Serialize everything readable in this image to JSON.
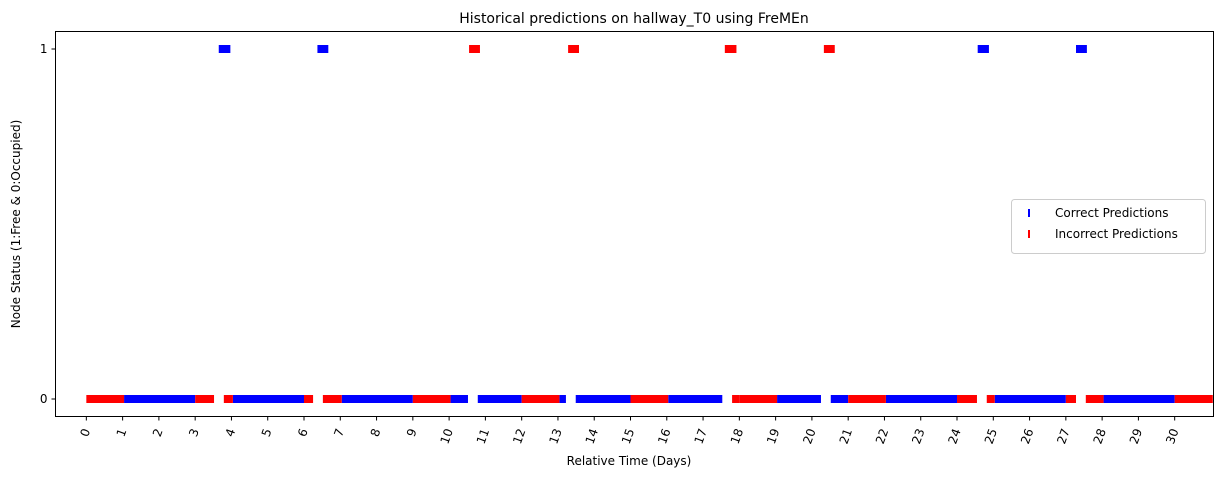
{
  "chart_data": {
    "type": "scatter",
    "title": "Historical predictions on hallway_T0 using FreMEn",
    "xlabel": "Relative Time (Days)",
    "ylabel": "Node Status (1:Free & 0:Occupied)",
    "xlim": [
      -0.85,
      31.07
    ],
    "ylim": [
      -0.05,
      1.05
    ],
    "xticks": [
      0,
      1,
      2,
      3,
      4,
      5,
      6,
      7,
      8,
      9,
      10,
      11,
      12,
      13,
      14,
      15,
      16,
      17,
      18,
      19,
      20,
      21,
      22,
      23,
      24,
      25,
      26,
      27,
      28,
      29,
      30
    ],
    "xtick_labels": [
      "0",
      "1",
      "2",
      "3",
      "4",
      "5",
      "6",
      "7",
      "8",
      "9",
      "10",
      "11",
      "12",
      "13",
      "14",
      "15",
      "16",
      "17",
      "18",
      "19",
      "20",
      "21",
      "22",
      "23",
      "24",
      "25",
      "26",
      "27",
      "28",
      "29",
      "30"
    ],
    "xtick_rotation": 70,
    "yticks": [
      0,
      1
    ],
    "ytick_labels": [
      "0",
      "1"
    ],
    "grid": false,
    "legend_position": "center-right",
    "series": [
      {
        "name": "Correct Predictions",
        "color": "#0000ff",
        "marker": "vertical-line",
        "segments": [
          {
            "y": 0,
            "x": [
              1.04,
              3.0
            ]
          },
          {
            "y": 0,
            "x": [
              4.04,
              6.0
            ]
          },
          {
            "y": 0,
            "x": [
              7.04,
              9.0
            ]
          },
          {
            "y": 0,
            "x": [
              10.04,
              10.52
            ]
          },
          {
            "y": 0,
            "x": [
              10.79,
              12.0
            ]
          },
          {
            "y": 0,
            "x": [
              13.04,
              13.22
            ]
          },
          {
            "y": 0,
            "x": [
              13.49,
              15.0
            ]
          },
          {
            "y": 0,
            "x": [
              16.04,
              17.53
            ]
          },
          {
            "y": 0,
            "x": [
              19.04,
              20.25
            ]
          },
          {
            "y": 0,
            "x": [
              20.52,
              21.0
            ]
          },
          {
            "y": 0,
            "x": [
              22.04,
              24.0
            ]
          },
          {
            "y": 0,
            "x": [
              25.04,
              27.0
            ]
          },
          {
            "y": 0,
            "x": [
              28.04,
              30.0
            ]
          },
          {
            "y": 1,
            "x": [
              3.65,
              3.97
            ]
          },
          {
            "y": 1,
            "x": [
              6.37,
              6.67
            ]
          },
          {
            "y": 1,
            "x": [
              24.57,
              24.88
            ]
          },
          {
            "y": 1,
            "x": [
              27.28,
              27.58
            ]
          }
        ]
      },
      {
        "name": "Incorrect Predictions",
        "color": "#ff0000",
        "marker": "vertical-line",
        "segments": [
          {
            "y": 0,
            "x": [
              0.0,
              1.04
            ]
          },
          {
            "y": 0,
            "x": [
              3.0,
              3.52
            ]
          },
          {
            "y": 0,
            "x": [
              3.79,
              4.04
            ]
          },
          {
            "y": 0,
            "x": [
              6.0,
              6.25
            ]
          },
          {
            "y": 0,
            "x": [
              6.52,
              7.04
            ]
          },
          {
            "y": 0,
            "x": [
              9.0,
              10.04
            ]
          },
          {
            "y": 0,
            "x": [
              12.0,
              13.04
            ]
          },
          {
            "y": 0,
            "x": [
              15.0,
              16.04
            ]
          },
          {
            "y": 0,
            "x": [
              17.8,
              18.0
            ]
          },
          {
            "y": 0,
            "x": [
              18.0,
              19.04
            ]
          },
          {
            "y": 0,
            "x": [
              21.0,
              22.04
            ]
          },
          {
            "y": 0,
            "x": [
              24.0,
              24.55
            ]
          },
          {
            "y": 0,
            "x": [
              24.82,
              25.04
            ]
          },
          {
            "y": 0,
            "x": [
              27.0,
              27.28
            ]
          },
          {
            "y": 0,
            "x": [
              27.55,
              28.04
            ]
          },
          {
            "y": 0,
            "x": [
              30.0,
              31.05
            ]
          },
          {
            "y": 1,
            "x": [
              10.55,
              10.85
            ]
          },
          {
            "y": 1,
            "x": [
              13.28,
              13.58
            ]
          },
          {
            "y": 1,
            "x": [
              17.6,
              17.92
            ]
          },
          {
            "y": 1,
            "x": [
              20.33,
              20.63
            ]
          }
        ]
      }
    ]
  }
}
